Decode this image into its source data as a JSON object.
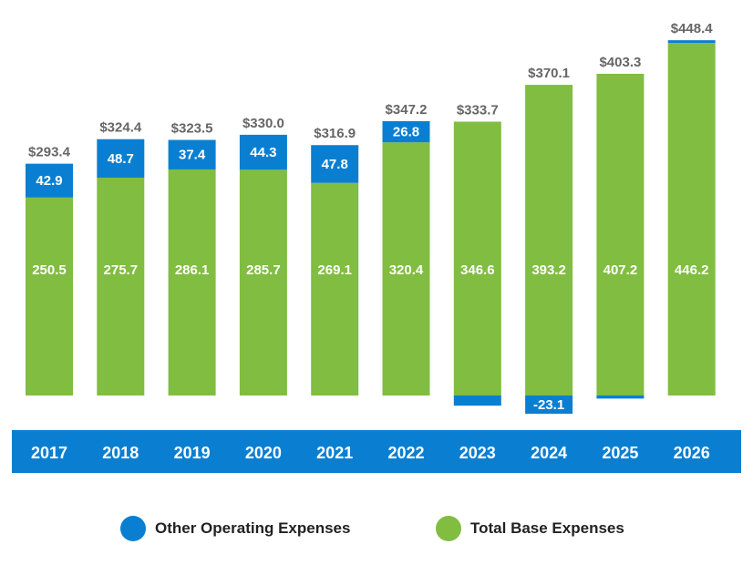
{
  "chart_data": {
    "type": "bar",
    "stacked": true,
    "categories": [
      "2017",
      "2018",
      "2019",
      "2020",
      "2021",
      "2022",
      "2023",
      "2024",
      "2025",
      "2026"
    ],
    "series": [
      {
        "name": "Total Base Expenses",
        "color": "#80bd41",
        "values": [
          250.5,
          275.7,
          286.1,
          285.7,
          269.1,
          320.4,
          346.6,
          393.2,
          407.2,
          446.2
        ],
        "labels": [
          "250.5",
          "275.7",
          "286.1",
          "285.7",
          "269.1",
          "320.4",
          "346.6",
          "393.2",
          "407.2",
          "446.2"
        ]
      },
      {
        "name": "Other Operating Expenses",
        "color": "#0a7fd2",
        "values": [
          42.9,
          48.7,
          37.4,
          44.3,
          47.8,
          26.8,
          -12.9,
          -23.1,
          -3.9,
          2.2
        ],
        "labels": [
          "42.9",
          "48.7",
          "37.4",
          "44.3",
          "47.8",
          "26.8",
          "",
          "-23.1",
          "",
          ""
        ]
      }
    ],
    "totals": [
      "$293.4",
      "$324.4",
      "$323.5",
      "$330.0",
      "$316.9",
      "$347.2",
      "$333.7",
      "$370.1",
      "$403.3",
      "$448.4"
    ],
    "axis_band_color": "#0a7fd2",
    "legend_position": "bottom",
    "grid": false
  }
}
